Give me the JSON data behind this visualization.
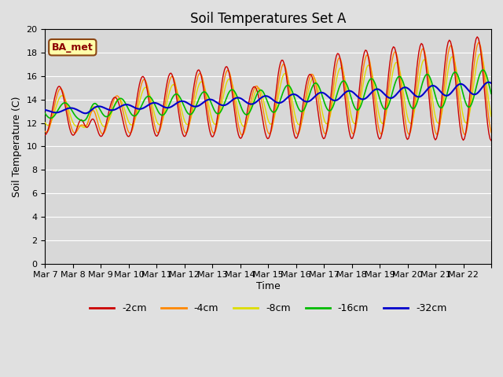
{
  "title": "Soil Temperatures Set A",
  "xlabel": "Time",
  "ylabel": "Soil Temperature (C)",
  "ylim": [
    0,
    20
  ],
  "yticks": [
    0,
    2,
    4,
    6,
    8,
    10,
    12,
    14,
    16,
    18,
    20
  ],
  "xtick_positions": [
    0,
    1,
    2,
    3,
    4,
    5,
    6,
    7,
    8,
    9,
    10,
    11,
    12,
    13,
    14,
    15,
    16
  ],
  "xtick_labels": [
    "Mar 7",
    "Mar 8",
    "Mar 9",
    "Mar 10",
    "Mar 11",
    "Mar 12",
    "Mar 13",
    "Mar 14",
    "Mar 15",
    "Mar 16",
    "Mar 17",
    "Mar 18",
    "Mar 19",
    "Mar 20",
    "Mar 21",
    "Mar 22",
    ""
  ],
  "annotation": "BA_met",
  "colors": {
    "-2cm": "#cc0000",
    "-4cm": "#ff8800",
    "-8cm": "#dddd00",
    "-16cm": "#00bb00",
    "-32cm": "#0000cc"
  },
  "legend_labels": [
    "-2cm",
    "-4cm",
    "-8cm",
    "-16cm",
    "-32cm"
  ],
  "fig_bg": "#e0e0e0",
  "plot_bg": "#d8d8d8"
}
